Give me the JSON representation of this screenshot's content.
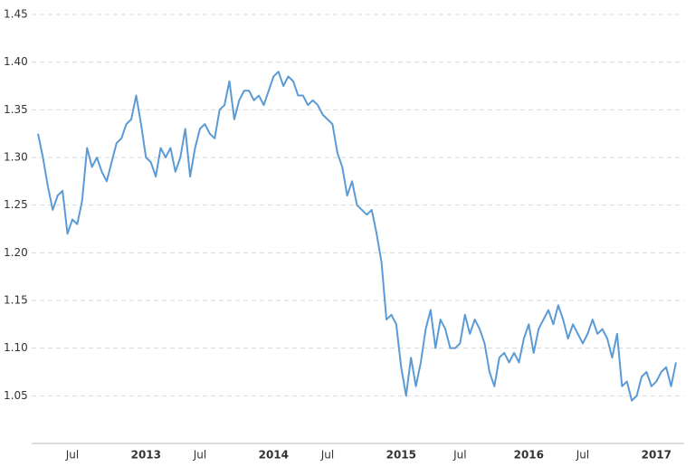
{
  "chart_data": {
    "type": "line",
    "color": "#5b9bd5",
    "grid": true,
    "ylim": [
      1.0,
      1.45
    ],
    "yticks": [
      1.05,
      {
        "value": 1.1,
        "label": "1.10"
      },
      1.15,
      {
        "value": 1.2,
        "label": "1.20"
      },
      1.25,
      {
        "value": 1.3,
        "label": "1.30"
      },
      1.35,
      {
        "value": 1.4,
        "label": "1.40"
      },
      1.45
    ],
    "categories": [
      null,
      null,
      null,
      null,
      null,
      null,
      null,
      "Jul",
      null,
      null,
      null,
      null,
      null,
      null,
      null,
      null,
      null,
      null,
      null,
      null,
      null,
      null,
      "2013",
      null,
      null,
      null,
      null,
      null,
      null,
      null,
      null,
      null,
      null,
      "Jul",
      null,
      null,
      null,
      null,
      null,
      null,
      null,
      null,
      null,
      null,
      null,
      null,
      null,
      null,
      "2014",
      null,
      null,
      null,
      null,
      null,
      null,
      null,
      null,
      null,
      null,
      "Jul",
      null,
      null,
      null,
      null,
      null,
      null,
      null,
      null,
      null,
      null,
      null,
      null,
      null,
      null,
      "2015",
      null,
      null,
      null,
      null,
      null,
      null,
      null,
      null,
      null,
      null,
      null,
      "Jul",
      null,
      null,
      null,
      null,
      null,
      null,
      null,
      null,
      null,
      null,
      null,
      null,
      null,
      "2016",
      null,
      null,
      null,
      null,
      null,
      null,
      null,
      null,
      null,
      null,
      "Jul",
      null,
      null,
      null,
      null,
      null,
      null,
      null,
      null,
      null,
      null,
      null,
      null,
      null,
      null,
      "2017",
      null,
      null,
      null,
      null
    ],
    "values": [
      1.325,
      1.3,
      1.27,
      1.245,
      1.26,
      1.265,
      1.22,
      1.235,
      1.23,
      1.255,
      1.31,
      1.29,
      1.3,
      1.285,
      1.275,
      1.295,
      1.315,
      1.32,
      1.335,
      1.34,
      1.365,
      1.335,
      1.3,
      1.295,
      1.28,
      1.31,
      1.3,
      1.31,
      1.285,
      1.3,
      1.33,
      1.28,
      1.31,
      1.33,
      1.335,
      1.325,
      1.32,
      1.35,
      1.355,
      1.38,
      1.34,
      1.36,
      1.37,
      1.37,
      1.36,
      1.365,
      1.355,
      1.37,
      1.385,
      1.39,
      1.375,
      1.385,
      1.38,
      1.365,
      1.365,
      1.355,
      1.36,
      1.355,
      1.345,
      1.34,
      1.335,
      1.305,
      1.29,
      1.26,
      1.275,
      1.25,
      1.245,
      1.24,
      1.245,
      1.22,
      1.19,
      1.13,
      1.135,
      1.125,
      1.08,
      1.05,
      1.09,
      1.06,
      1.085,
      1.12,
      1.14,
      1.1,
      1.13,
      1.12,
      1.1,
      1.1,
      1.105,
      1.135,
      1.115,
      1.13,
      1.12,
      1.105,
      1.075,
      1.06,
      1.09,
      1.095,
      1.085,
      1.095,
      1.085,
      1.11,
      1.125,
      1.095,
      1.12,
      1.13,
      1.14,
      1.125,
      1.145,
      1.13,
      1.11,
      1.125,
      1.115,
      1.105,
      1.115,
      1.13,
      1.115,
      1.12,
      1.11,
      1.09,
      1.115,
      1.06,
      1.065,
      1.045,
      1.05,
      1.07,
      1.075,
      1.06,
      1.065,
      1.075,
      1.08,
      1.06,
      1.085
    ]
  }
}
